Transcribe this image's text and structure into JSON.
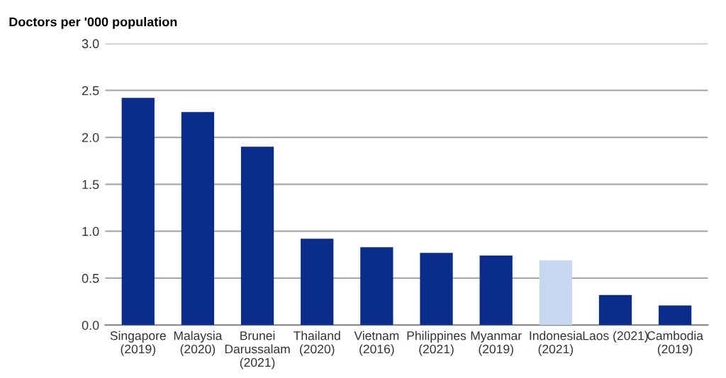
{
  "chart_data": {
    "type": "bar",
    "title": "Doctors per '000 population",
    "categories": [
      "Singapore\n(2019)",
      "Malaysia\n(2020)",
      "Brunei\nDarussalam\n(2021)",
      "Thailand\n(2020)",
      "Vietnam\n(2016)",
      "Philippines\n(2021)",
      "Myanmar\n(2019)",
      "Indonesia\n(2021)",
      "Laos (2021)",
      "Cambodia\n(2019)"
    ],
    "values": [
      2.42,
      2.27,
      1.9,
      0.92,
      0.83,
      0.77,
      0.74,
      0.69,
      0.32,
      0.21
    ],
    "colors": [
      "#0a2d8c",
      "#0a2d8c",
      "#0a2d8c",
      "#0a2d8c",
      "#0a2d8c",
      "#0a2d8c",
      "#0a2d8c",
      "#c5d8ef",
      "#0a2d8c",
      "#0a2d8c"
    ],
    "ylim": [
      0,
      3
    ],
    "yticks": [
      {
        "value": 0,
        "label": "0.0"
      },
      {
        "value": 0.5,
        "label": "0.5"
      },
      {
        "value": 1,
        "label": "1.0"
      },
      {
        "value": 1.5,
        "label": "1.5"
      },
      {
        "value": 2,
        "label": "2.0"
      },
      {
        "value": 2.5,
        "label": "2.5"
      },
      {
        "value": 3,
        "label": "3.0"
      }
    ],
    "grid": "y",
    "legend": false
  }
}
